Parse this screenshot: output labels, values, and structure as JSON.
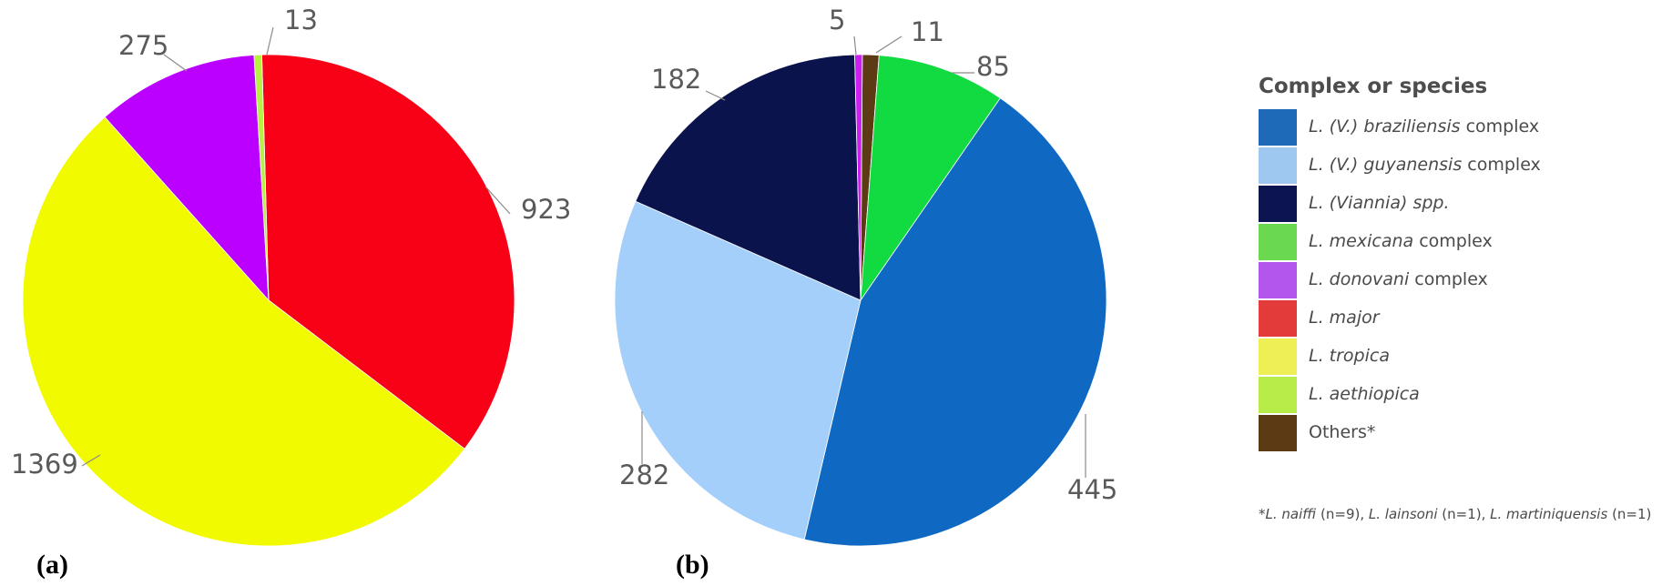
{
  "chart_data": [
    {
      "type": "pie",
      "panel_label": "(a)",
      "slices": [
        {
          "label": "L. major",
          "value": 923,
          "color": "#f80015",
          "display": "923"
        },
        {
          "label": "L. tropica",
          "value": 1369,
          "color": "#f2fa00",
          "display": "1369"
        },
        {
          "label": "L. donovani complex",
          "value": 275,
          "color": "#bb00ff",
          "display": "275"
        },
        {
          "label": "L. aethiopica",
          "value": 13,
          "color": "#b8f046",
          "display": "13"
        }
      ]
    },
    {
      "type": "pie",
      "panel_label": "(b)",
      "slices": [
        {
          "label": "Others*",
          "value": 11,
          "color": "#5c3a14",
          "display": "11"
        },
        {
          "label": "L. mexicana complex",
          "value": 85,
          "color": "#12db42",
          "display": "85"
        },
        {
          "label": "L. (V.) braziliensis complex",
          "value": 445,
          "color": "#0f69c2",
          "display": "445"
        },
        {
          "label": "L. (V.) guyanensis complex",
          "value": 282,
          "color": "#a3cffa",
          "display": "282"
        },
        {
          "label": "L. (Viannia) spp.",
          "value": 182,
          "color": "#0a134c",
          "display": "182"
        },
        {
          "label": "L. donovani complex",
          "value": 5,
          "color": "#cc1ef0",
          "display": "5"
        }
      ]
    }
  ],
  "legend": {
    "title": "Complex or species",
    "items": [
      {
        "italic": "L. (V.) braziliensis",
        "plain": " complex",
        "color": "#1e6ab8"
      },
      {
        "italic": "L. (V.) guyanensis",
        "plain": " complex",
        "color": "#9fc8f0"
      },
      {
        "italic": "L. (Viannia) spp.",
        "plain": "",
        "color": "#0c1550"
      },
      {
        "italic": "L. mexicana",
        "plain": " complex",
        "color": "#6ad950"
      },
      {
        "italic": "L. donovani",
        "plain": " complex",
        "color": "#b356ee"
      },
      {
        "italic": "L. major",
        "plain": "",
        "color": "#e33a3a"
      },
      {
        "italic": "L. tropica",
        "plain": "",
        "color": "#eeee55"
      },
      {
        "italic": "L. aethiopica",
        "plain": "",
        "color": "#b8ec48"
      },
      {
        "italic": "",
        "plain": "Others*",
        "color": "#5b3a14"
      }
    ]
  },
  "footnote": {
    "parts": [
      {
        "italic": true,
        "text": "*L. naiffi"
      },
      {
        "italic": false,
        "text": " (n=9), "
      },
      {
        "italic": true,
        "text": "L. lainsoni"
      },
      {
        "italic": false,
        "text": " (n=1), "
      },
      {
        "italic": true,
        "text": "L. martiniquensis"
      },
      {
        "italic": false,
        "text": " (n=1)"
      }
    ]
  }
}
